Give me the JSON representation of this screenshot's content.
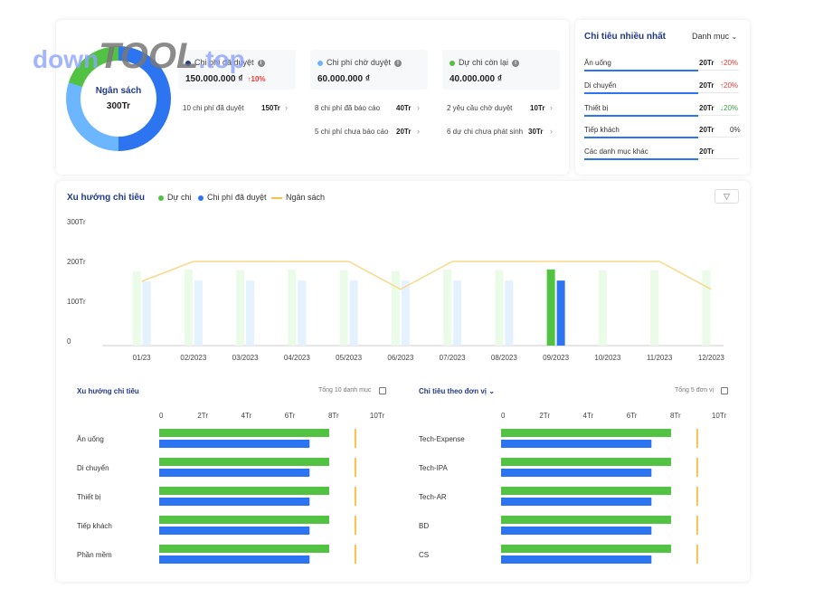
{
  "watermark": {
    "prefix": "down",
    "brand": "TOOL",
    "suffix": ".top"
  },
  "overview": {
    "donut": {
      "label": "Ngân sách",
      "value": "300Tr",
      "segments": [
        {
          "color": "#2c74f0",
          "fraction": 0.5
        },
        {
          "color": "#6cb6ff",
          "fraction": 0.3
        },
        {
          "color": "#52c243",
          "fraction": 0.2
        }
      ]
    },
    "tiles": [
      {
        "label": "Chi phí đã duyệt",
        "value": "150.000.000 ₫",
        "change": "10%",
        "dot_color": "#1f3a8a"
      },
      {
        "label": "Chi phí chờ duyệt",
        "value": "60.000.000 ₫",
        "dot_color": "#6cb6ff"
      },
      {
        "label": "Dự chi còn lại",
        "value": "40.000.000 ₫",
        "dot_color": "#52c243"
      }
    ],
    "stats": [
      {
        "label": "10 chi phí đã duyệt",
        "value": "150Tr"
      },
      {
        "label": "8 chi phí đã báo cáo",
        "value": "40Tr"
      },
      {
        "label": "5 chi phí chưa báo cáo",
        "value": "20Tr"
      },
      {
        "label": "2 yêu cầu chờ duyệt",
        "value": "10Tr"
      },
      {
        "label": "6 dự chi chưa phát sinh",
        "value": "30Tr"
      }
    ]
  },
  "top_spending": {
    "title": "Chi tiêu nhiều nhất",
    "dropdown": "Danh mục",
    "items": [
      {
        "name": "Ăn uống",
        "value": "20Tr",
        "change": "20%",
        "direction": "up"
      },
      {
        "name": "Di chuyển",
        "value": "20Tr",
        "change": "20%",
        "direction": "up"
      },
      {
        "name": "Thiết bị",
        "value": "20Tr",
        "change": "20%",
        "direction": "down"
      },
      {
        "name": "Tiếp khách",
        "value": "20Tr",
        "change": "0%",
        "direction": "none"
      },
      {
        "name": "Các danh mục khác",
        "value": "20Tr",
        "change": "",
        "direction": "none"
      }
    ]
  },
  "trend": {
    "title": "Xu hướng chi tiêu",
    "legend": [
      {
        "name": "Dự chi",
        "color": "#52c243"
      },
      {
        "name": "Chi phí đã duyệt",
        "color": "#2c74f0"
      },
      {
        "name": "Ngân sách",
        "color": "#f5c24c"
      }
    ]
  },
  "chart_data": [
    {
      "type": "bar",
      "title": "Xu hướng chi tiêu",
      "categories": [
        "01/23",
        "02/2023",
        "03/2023",
        "04/2023",
        "05/2023",
        "06/2023",
        "07/2023",
        "08/2023",
        "09/2023",
        "10/2023",
        "11/2023",
        "12/2023"
      ],
      "y_ticks": [
        "0",
        "100Tr",
        "200Tr",
        "300Tr"
      ],
      "ylim": [
        0,
        300
      ],
      "highlight_index": 8,
      "series": [
        {
          "name": "Dự chi",
          "kind": "bar",
          "color": "#52c243",
          "values": [
            175,
            180,
            178,
            180,
            178,
            175,
            180,
            178,
            180,
            178,
            178,
            178
          ]
        },
        {
          "name": "Chi phí đã duyệt",
          "kind": "bar",
          "color": "#2c74f0",
          "values": [
            150,
            152,
            152,
            152,
            152,
            152,
            152,
            152,
            152,
            null,
            null,
            null
          ]
        },
        {
          "name": "Ngân sách",
          "kind": "line",
          "color": "#f5c24c",
          "values": [
            150,
            200,
            200,
            200,
            200,
            130,
            200,
            200,
            200,
            200,
            200,
            130
          ]
        }
      ]
    },
    {
      "type": "bar",
      "title": "Chi tiêu theo danh mục",
      "note": "Tổng 10 danh mục",
      "categories": [
        "Ăn uống",
        "Di chuyển",
        "Thiết bị",
        "Tiếp khách",
        "Phần mềm"
      ],
      "x_ticks": [
        "0",
        "2Tr",
        "4Tr",
        "6Tr",
        "8Tr",
        "10Tr"
      ],
      "xlim": [
        0,
        10
      ],
      "limit": 9,
      "series": [
        {
          "name": "Dự chi",
          "color": "#52c243",
          "values": [
            7.8,
            7.8,
            7.8,
            7.8,
            7.8
          ]
        },
        {
          "name": "Chi phí đã duyệt",
          "color": "#2c74f0",
          "values": [
            6.9,
            6.9,
            6.9,
            6.9,
            6.9
          ]
        }
      ]
    },
    {
      "type": "bar",
      "title": "Chi tiêu theo đơn vị",
      "note": "Tổng 5 đơn vị",
      "categories": [
        "Tech-Expense",
        "Tech-IPA",
        "Tech-AR",
        "BD",
        "CS"
      ],
      "x_ticks": [
        "0",
        "2Tr",
        "4Tr",
        "6Tr",
        "8Tr",
        "10Tr"
      ],
      "xlim": [
        0,
        10
      ],
      "limit": 9,
      "series": [
        {
          "name": "Dự chi",
          "color": "#52c243",
          "values": [
            7.8,
            7.8,
            7.8,
            7.8,
            7.8
          ]
        },
        {
          "name": "Chi phí đã duyệt",
          "color": "#2c74f0",
          "values": [
            6.9,
            6.9,
            6.9,
            6.9,
            6.9
          ]
        }
      ]
    }
  ]
}
